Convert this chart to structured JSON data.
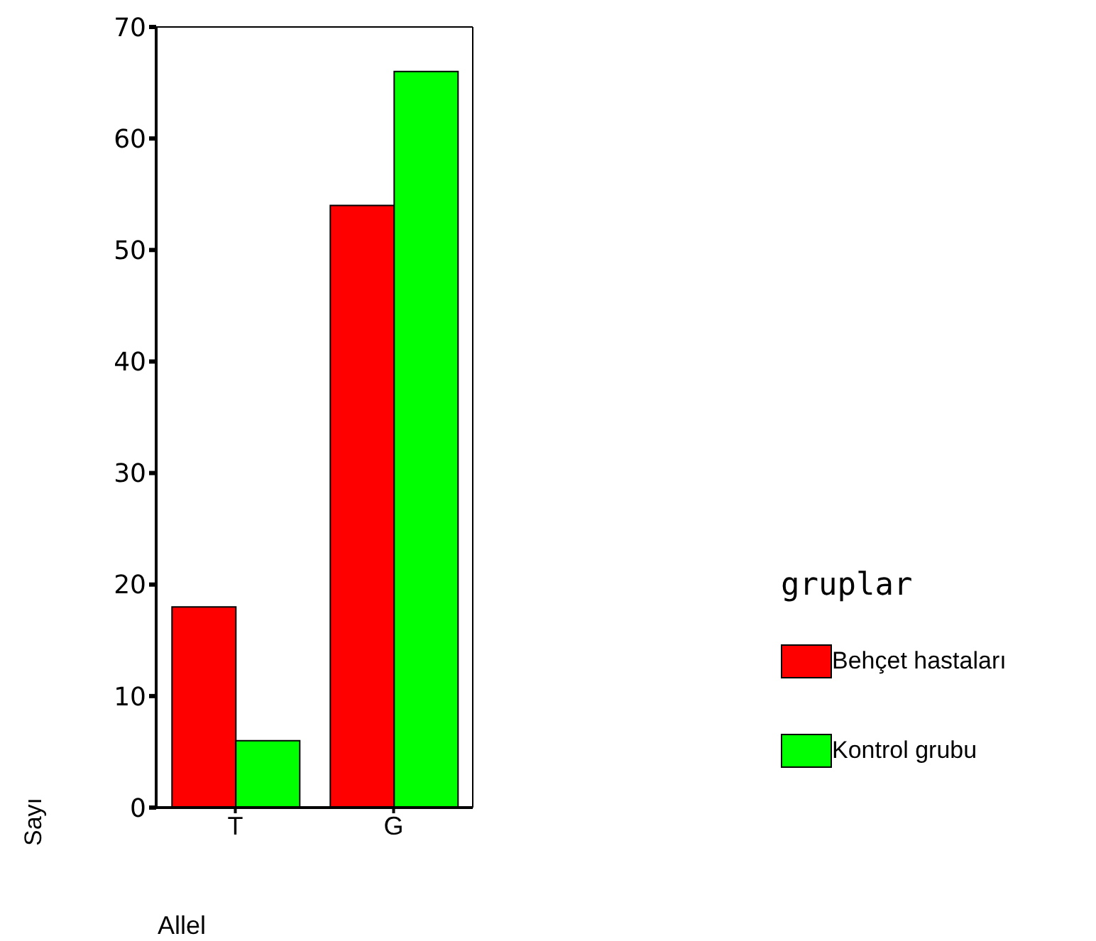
{
  "chart_data": {
    "type": "bar",
    "xlabel": "Allel",
    "ylabel": "Sayı",
    "legend_title": "gruplar",
    "categories": [
      "T",
      "G"
    ],
    "series": [
      {
        "name": "Behçet hastaları",
        "color": "#ff0000",
        "values": [
          18,
          54
        ]
      },
      {
        "name": "Kontrol grubu",
        "color": "#00ff00",
        "values": [
          6,
          66
        ]
      }
    ],
    "ylim": [
      0,
      70
    ],
    "yticks": [
      0,
      10,
      20,
      30,
      40,
      50,
      60,
      70
    ],
    "grid": false,
    "legend": "right"
  }
}
